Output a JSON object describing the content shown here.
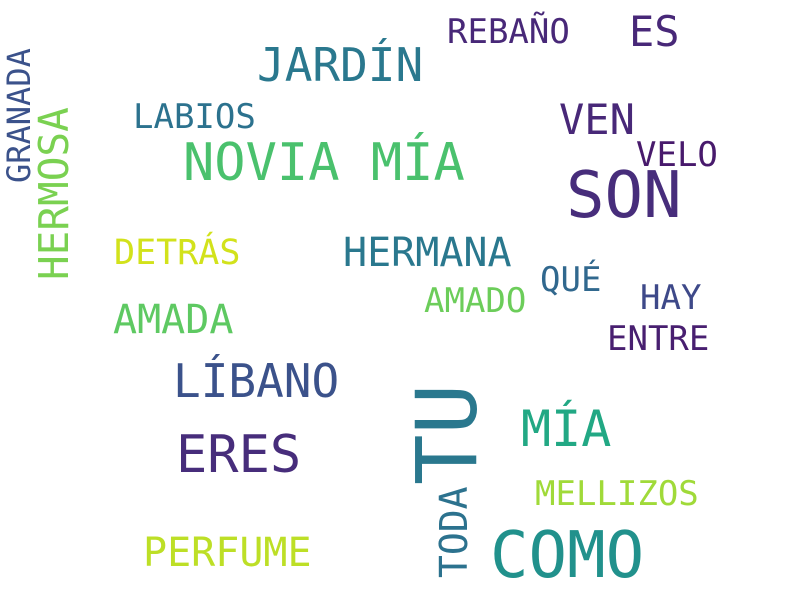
{
  "words": [
    {
      "text": "SON",
      "color": "#472d7b"
    },
    {
      "text": "TU",
      "color": "#2a788e"
    },
    {
      "text": "COMO",
      "color": "#21918c"
    },
    {
      "text": "NOVIA MÍA",
      "color": "#4ac16d"
    },
    {
      "text": "ERES",
      "color": "#472d7b"
    },
    {
      "text": "MÍA",
      "color": "#22a884"
    },
    {
      "text": "JARDÍN",
      "color": "#2a788e"
    },
    {
      "text": "LÍBANO",
      "color": "#3b528b"
    },
    {
      "text": "HERMANA",
      "color": "#2a788e"
    },
    {
      "text": "HERMOSA",
      "color": "#7ad151"
    },
    {
      "text": "PERFUME",
      "color": "#bddf26"
    },
    {
      "text": "AMADA",
      "color": "#5ec962"
    },
    {
      "text": "VEN",
      "color": "#482878"
    },
    {
      "text": "ES",
      "color": "#482878"
    },
    {
      "text": "DETRÁS",
      "color": "#d2e21b"
    },
    {
      "text": "LABIOS",
      "color": "#2c728e"
    },
    {
      "text": "GRANADA",
      "color": "#3b528b"
    },
    {
      "text": "TODA",
      "color": "#2c728e"
    },
    {
      "text": "MELLIZOS",
      "color": "#a0da39"
    },
    {
      "text": "REBAÑO",
      "color": "#482878"
    },
    {
      "text": "VELO",
      "color": "#481a6c"
    },
    {
      "text": "HAY",
      "color": "#3e4989"
    },
    {
      "text": "QUÉ",
      "color": "#31688e"
    },
    {
      "text": "ENTRE",
      "color": "#481f70"
    },
    {
      "text": "AMADO",
      "color": "#6ccd5a"
    }
  ]
}
